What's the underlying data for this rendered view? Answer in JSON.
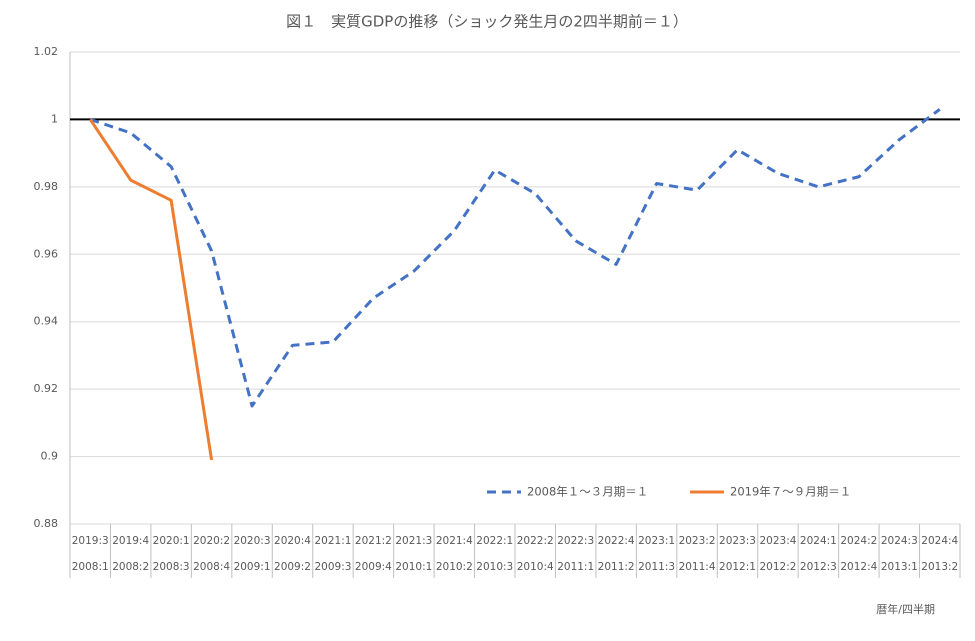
{
  "chart_data": {
    "type": "line",
    "title": "図１　実質GDPの推移（ショック発生月の2四半期前＝１）",
    "categories": [
      "2019:3",
      "2019:4",
      "2020:1",
      "2020:2",
      "2020:3",
      "2020:4",
      "2021:1",
      "2021:2",
      "2021:3",
      "2021:4",
      "2022:1",
      "2022:2",
      "2022:3",
      "2022:4",
      "2023:1",
      "2023:2",
      "2023:3",
      "2023:4",
      "2024:1",
      "2024:2",
      "2024:3",
      "2024:4"
    ],
    "categories_lower": [
      "2008:1",
      "2008:2",
      "2008:3",
      "2008:4",
      "2009:1",
      "2009:2",
      "2009:3",
      "2009:4",
      "2010:1",
      "2010:2",
      "2010:3",
      "2010:4",
      "2011:1",
      "2011:2",
      "2011:3",
      "2011:4",
      "2012:1",
      "2012:2",
      "2012:3",
      "2012:4",
      "2013:1",
      "2013:2"
    ],
    "series": [
      {
        "name": "2008年１～３月期＝１",
        "color": "#4472c4",
        "dashed": true,
        "values": [
          1.0,
          0.996,
          0.986,
          0.961,
          0.915,
          0.933,
          0.934,
          0.947,
          0.955,
          0.967,
          0.985,
          0.978,
          0.964,
          0.957,
          0.981,
          0.979,
          0.991,
          0.984,
          0.98,
          0.983,
          0.994,
          1.003
        ]
      },
      {
        "name": "2019年７～９月期＝１",
        "color": "#ed7d31",
        "dashed": false,
        "values": [
          1.0,
          0.982,
          0.976,
          0.899,
          null,
          null,
          null,
          null,
          null,
          null,
          null,
          null,
          null,
          null,
          null,
          null,
          null,
          null,
          null,
          null,
          null,
          null
        ]
      }
    ],
    "reference_line": 1,
    "ylim": [
      0.88,
      1.02
    ],
    "yticks": [
      0.88,
      0.9,
      0.92,
      0.94,
      0.96,
      0.98,
      1,
      1.02
    ],
    "grid": true,
    "legend": "bottom",
    "x_axis_note": "暦年/四半期"
  }
}
